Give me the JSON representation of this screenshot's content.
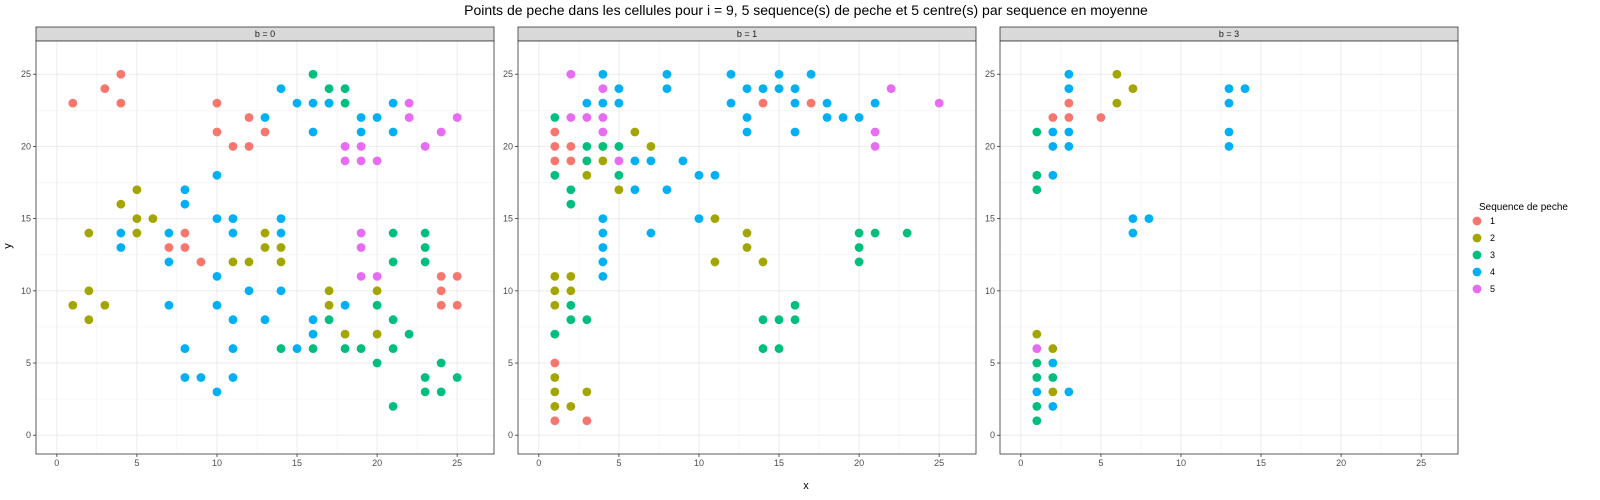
{
  "chart_data": {
    "type": "scatter",
    "title": "Points de peche dans les cellules pour i = 9, 5 sequence(s) de peche et 5 centre(s) par sequence en moyenne",
    "xlabel": "x",
    "ylabel": "y",
    "xlim": [
      -1.3,
      27.3
    ],
    "ylim": [
      -1.3,
      27.3
    ],
    "x_ticks": [
      0,
      5,
      10,
      15,
      20,
      25
    ],
    "y_ticks": [
      0,
      5,
      10,
      15,
      20,
      25
    ],
    "grid": true,
    "legend": {
      "title": "Sequence de peche",
      "position": "right",
      "entries": [
        {
          "label": "1",
          "color": "#F8766D"
        },
        {
          "label": "2",
          "color": "#A3A500"
        },
        {
          "label": "3",
          "color": "#00BF7D"
        },
        {
          "label": "4",
          "color": "#00B0F6"
        },
        {
          "label": "5",
          "color": "#E76BF3"
        }
      ]
    },
    "facets": [
      {
        "label": "b = 0",
        "points": [
          [
            1,
            23,
            1
          ],
          [
            3,
            24,
            1
          ],
          [
            4,
            25,
            1
          ],
          [
            4,
            23,
            1
          ],
          [
            10,
            23,
            1
          ],
          [
            10,
            21,
            1
          ],
          [
            11,
            20,
            1
          ],
          [
            12,
            22,
            1
          ],
          [
            12,
            20,
            1
          ],
          [
            13,
            21,
            1
          ],
          [
            7,
            13,
            1
          ],
          [
            8,
            14,
            1
          ],
          [
            8,
            13,
            1
          ],
          [
            9,
            12,
            1
          ],
          [
            24,
            11,
            1
          ],
          [
            25,
            11,
            1
          ],
          [
            24,
            10,
            1
          ],
          [
            24,
            9,
            1
          ],
          [
            25,
            9,
            1
          ],
          [
            1,
            9,
            2
          ],
          [
            2,
            14,
            2
          ],
          [
            2,
            10,
            2
          ],
          [
            2,
            8,
            2
          ],
          [
            3,
            9,
            2
          ],
          [
            4,
            16,
            2
          ],
          [
            5,
            17,
            2
          ],
          [
            5,
            15,
            2
          ],
          [
            5,
            14,
            2
          ],
          [
            6,
            15,
            2
          ],
          [
            11,
            12,
            2
          ],
          [
            12,
            12,
            2
          ],
          [
            13,
            14,
            2
          ],
          [
            13,
            13,
            2
          ],
          [
            14,
            13,
            2
          ],
          [
            14,
            12,
            2
          ],
          [
            17,
            10,
            2
          ],
          [
            17,
            9,
            2
          ],
          [
            18,
            7,
            2
          ],
          [
            20,
            10,
            2
          ],
          [
            20,
            7,
            2
          ],
          [
            16,
            25,
            3
          ],
          [
            17,
            24,
            3
          ],
          [
            18,
            24,
            3
          ],
          [
            17,
            23,
            3
          ],
          [
            18,
            23,
            3
          ],
          [
            14,
            6,
            3
          ],
          [
            16,
            6,
            3
          ],
          [
            17,
            8,
            3
          ],
          [
            18,
            6,
            3
          ],
          [
            19,
            6,
            3
          ],
          [
            20,
            9,
            3
          ],
          [
            20,
            5,
            3
          ],
          [
            21,
            14,
            3
          ],
          [
            21,
            12,
            3
          ],
          [
            21,
            8,
            3
          ],
          [
            21,
            6,
            3
          ],
          [
            21,
            2,
            3
          ],
          [
            22,
            7,
            3
          ],
          [
            23,
            14,
            3
          ],
          [
            23,
            13,
            3
          ],
          [
            23,
            12,
            3
          ],
          [
            23,
            4,
            3
          ],
          [
            23,
            3,
            3
          ],
          [
            24,
            5,
            3
          ],
          [
            24,
            3,
            3
          ],
          [
            25,
            4,
            3
          ],
          [
            4,
            14,
            4
          ],
          [
            4,
            13,
            4
          ],
          [
            7,
            14,
            4
          ],
          [
            7,
            12,
            4
          ],
          [
            7,
            9,
            4
          ],
          [
            8,
            17,
            4
          ],
          [
            8,
            16,
            4
          ],
          [
            8,
            6,
            4
          ],
          [
            8,
            4,
            4
          ],
          [
            9,
            4,
            4
          ],
          [
            10,
            18,
            4
          ],
          [
            10,
            15,
            4
          ],
          [
            10,
            11,
            4
          ],
          [
            10,
            9,
            4
          ],
          [
            10,
            3,
            4
          ],
          [
            11,
            15,
            4
          ],
          [
            11,
            14,
            4
          ],
          [
            11,
            8,
            4
          ],
          [
            11,
            6,
            4
          ],
          [
            11,
            4,
            4
          ],
          [
            12,
            10,
            4
          ],
          [
            13,
            22,
            4
          ],
          [
            13,
            8,
            4
          ],
          [
            14,
            24,
            4
          ],
          [
            14,
            15,
            4
          ],
          [
            14,
            14,
            4
          ],
          [
            14,
            10,
            4
          ],
          [
            15,
            23,
            4
          ],
          [
            15,
            6,
            4
          ],
          [
            16,
            23,
            4
          ],
          [
            16,
            21,
            4
          ],
          [
            16,
            8,
            4
          ],
          [
            16,
            7,
            4
          ],
          [
            17,
            23,
            4
          ],
          [
            18,
            9,
            4
          ],
          [
            19,
            22,
            4
          ],
          [
            19,
            21,
            4
          ],
          [
            20,
            22,
            4
          ],
          [
            21,
            23,
            4
          ],
          [
            21,
            21,
            4
          ],
          [
            18,
            20,
            5
          ],
          [
            18,
            19,
            5
          ],
          [
            19,
            20,
            5
          ],
          [
            19,
            19,
            5
          ],
          [
            20,
            19,
            5
          ],
          [
            22,
            23,
            5
          ],
          [
            22,
            22,
            5
          ],
          [
            23,
            20,
            5
          ],
          [
            24,
            21,
            5
          ],
          [
            25,
            22,
            5
          ],
          [
            19,
            14,
            5
          ],
          [
            19,
            13,
            5
          ],
          [
            19,
            11,
            5
          ],
          [
            20,
            11,
            5
          ]
        ]
      },
      {
        "label": "b = 1",
        "points": [
          [
            1,
            21,
            1
          ],
          [
            1,
            20,
            1
          ],
          [
            1,
            19,
            1
          ],
          [
            2,
            20,
            1
          ],
          [
            2,
            19,
            1
          ],
          [
            3,
            19,
            1
          ],
          [
            1,
            5,
            1
          ],
          [
            1,
            1,
            1
          ],
          [
            3,
            1,
            1
          ],
          [
            14,
            23,
            1
          ],
          [
            17,
            23,
            1
          ],
          [
            1,
            11,
            2
          ],
          [
            1,
            10,
            2
          ],
          [
            1,
            9,
            2
          ],
          [
            1,
            4,
            2
          ],
          [
            1,
            3,
            2
          ],
          [
            1,
            2,
            2
          ],
          [
            2,
            11,
            2
          ],
          [
            2,
            10,
            2
          ],
          [
            2,
            2,
            2
          ],
          [
            3,
            18,
            2
          ],
          [
            3,
            3,
            2
          ],
          [
            4,
            20,
            2
          ],
          [
            4,
            19,
            2
          ],
          [
            5,
            17,
            2
          ],
          [
            6,
            21,
            2
          ],
          [
            7,
            20,
            2
          ],
          [
            11,
            15,
            2
          ],
          [
            11,
            12,
            2
          ],
          [
            13,
            14,
            2
          ],
          [
            13,
            13,
            2
          ],
          [
            14,
            12,
            2
          ],
          [
            1,
            22,
            3
          ],
          [
            1,
            18,
            3
          ],
          [
            1,
            7,
            3
          ],
          [
            2,
            17,
            3
          ],
          [
            2,
            16,
            3
          ],
          [
            2,
            9,
            3
          ],
          [
            2,
            8,
            3
          ],
          [
            3,
            20,
            3
          ],
          [
            3,
            19,
            3
          ],
          [
            3,
            8,
            3
          ],
          [
            4,
            20,
            3
          ],
          [
            5,
            20,
            3
          ],
          [
            5,
            18,
            3
          ],
          [
            14,
            8,
            3
          ],
          [
            14,
            6,
            3
          ],
          [
            15,
            8,
            3
          ],
          [
            15,
            6,
            3
          ],
          [
            16,
            9,
            3
          ],
          [
            16,
            8,
            3
          ],
          [
            20,
            14,
            3
          ],
          [
            20,
            13,
            3
          ],
          [
            20,
            12,
            3
          ],
          [
            21,
            14,
            3
          ],
          [
            23,
            14,
            3
          ],
          [
            3,
            23,
            4
          ],
          [
            4,
            25,
            4
          ],
          [
            4,
            23,
            4
          ],
          [
            4,
            15,
            4
          ],
          [
            4,
            14,
            4
          ],
          [
            4,
            13,
            4
          ],
          [
            4,
            12,
            4
          ],
          [
            4,
            11,
            4
          ],
          [
            5,
            24,
            4
          ],
          [
            5,
            23,
            4
          ],
          [
            6,
            19,
            4
          ],
          [
            6,
            17,
            4
          ],
          [
            7,
            19,
            4
          ],
          [
            7,
            14,
            4
          ],
          [
            8,
            25,
            4
          ],
          [
            8,
            24,
            4
          ],
          [
            8,
            17,
            4
          ],
          [
            9,
            19,
            4
          ],
          [
            10,
            18,
            4
          ],
          [
            10,
            15,
            4
          ],
          [
            11,
            18,
            4
          ],
          [
            12,
            25,
            4
          ],
          [
            12,
            23,
            4
          ],
          [
            13,
            24,
            4
          ],
          [
            13,
            22,
            4
          ],
          [
            13,
            21,
            4
          ],
          [
            14,
            24,
            4
          ],
          [
            15,
            25,
            4
          ],
          [
            15,
            24,
            4
          ],
          [
            16,
            24,
            4
          ],
          [
            16,
            23,
            4
          ],
          [
            16,
            21,
            4
          ],
          [
            17,
            25,
            4
          ],
          [
            18,
            23,
            4
          ],
          [
            18,
            22,
            4
          ],
          [
            19,
            22,
            4
          ],
          [
            20,
            22,
            4
          ],
          [
            21,
            23,
            4
          ],
          [
            2,
            25,
            5
          ],
          [
            2,
            22,
            5
          ],
          [
            3,
            22,
            5
          ],
          [
            4,
            24,
            5
          ],
          [
            4,
            22,
            5
          ],
          [
            4,
            21,
            5
          ],
          [
            5,
            19,
            5
          ],
          [
            21,
            21,
            5
          ],
          [
            21,
            20,
            5
          ],
          [
            22,
            24,
            5
          ],
          [
            25,
            23,
            5
          ]
        ]
      },
      {
        "label": "b = 3",
        "points": [
          [
            2,
            22,
            1
          ],
          [
            3,
            23,
            1
          ],
          [
            3,
            22,
            1
          ],
          [
            5,
            22,
            1
          ],
          [
            6,
            25,
            2
          ],
          [
            6,
            23,
            2
          ],
          [
            7,
            24,
            2
          ],
          [
            1,
            7,
            2
          ],
          [
            2,
            6,
            2
          ],
          [
            2,
            3,
            2
          ],
          [
            1,
            21,
            3
          ],
          [
            1,
            18,
            3
          ],
          [
            1,
            17,
            3
          ],
          [
            1,
            5,
            3
          ],
          [
            1,
            4,
            3
          ],
          [
            1,
            2,
            3
          ],
          [
            1,
            1,
            3
          ],
          [
            2,
            4,
            3
          ],
          [
            2,
            21,
            4
          ],
          [
            2,
            20,
            4
          ],
          [
            2,
            18,
            4
          ],
          [
            3,
            25,
            4
          ],
          [
            3,
            24,
            4
          ],
          [
            3,
            21,
            4
          ],
          [
            3,
            20,
            4
          ],
          [
            7,
            15,
            4
          ],
          [
            7,
            14,
            4
          ],
          [
            8,
            15,
            4
          ],
          [
            13,
            24,
            4
          ],
          [
            13,
            23,
            4
          ],
          [
            13,
            21,
            4
          ],
          [
            13,
            20,
            4
          ],
          [
            14,
            24,
            4
          ],
          [
            1,
            3,
            4
          ],
          [
            2,
            5,
            4
          ],
          [
            2,
            2,
            4
          ],
          [
            3,
            3,
            4
          ],
          [
            1,
            6,
            5
          ]
        ]
      }
    ]
  }
}
